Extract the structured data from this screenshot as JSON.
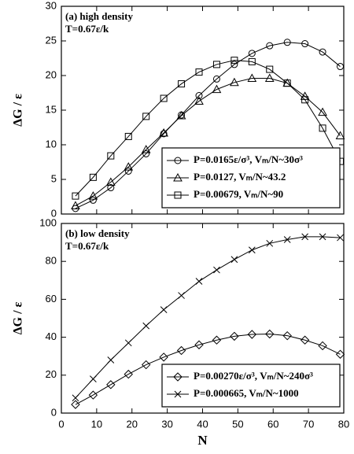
{
  "chart_data": [
    {
      "type": "line",
      "annotations": [
        "(a) high density",
        "T=0.67ε/k"
      ],
      "ylabel": "ΔG / ε",
      "xlim": [
        0,
        80
      ],
      "ylim": [
        0,
        30
      ],
      "xticks": [
        0,
        10,
        20,
        30,
        40,
        50,
        60,
        70,
        80
      ],
      "show_xtick_labels": false,
      "yticks": [
        0,
        5,
        10,
        15,
        20,
        25,
        30
      ],
      "legend": "lower right",
      "color": "#000000",
      "x": [
        4,
        9,
        14,
        19,
        24,
        29,
        34,
        39,
        44,
        49,
        54,
        59,
        64,
        69,
        74,
        79
      ],
      "series": [
        {
          "name": "P=0.0165ε/σ³, Vₘ/N~30σ³",
          "marker": "circle",
          "values": [
            0.8,
            2.0,
            3.8,
            6.2,
            8.7,
            11.6,
            14.3,
            17.1,
            19.5,
            21.6,
            23.2,
            24.3,
            24.8,
            24.6,
            23.4,
            21.3
          ]
        },
        {
          "name": "P=0.0127, Vₘ/N~43.2",
          "marker": "triangle",
          "values": [
            1.2,
            2.6,
            4.6,
            6.8,
            9.3,
            11.7,
            14.2,
            16.3,
            18.0,
            19.0,
            19.6,
            19.6,
            18.9,
            17.0,
            14.7,
            11.3
          ]
        },
        {
          "name": "P=0.00679, Vₘ/N~90",
          "marker": "square",
          "values": [
            2.6,
            5.3,
            8.4,
            11.2,
            14.1,
            16.7,
            18.8,
            20.5,
            21.6,
            22.2,
            22.0,
            20.9,
            18.9,
            16.5,
            12.4,
            7.6
          ]
        }
      ]
    },
    {
      "type": "line",
      "annotations": [
        "(b) low density",
        "T=0.67ε/k"
      ],
      "ylabel": "ΔG / ε",
      "xlabel": "N",
      "xlim": [
        0,
        80
      ],
      "ylim": [
        0,
        100
      ],
      "xticks": [
        0,
        10,
        20,
        30,
        40,
        50,
        60,
        70,
        80
      ],
      "show_xtick_labels": true,
      "yticks": [
        0,
        20,
        40,
        60,
        80,
        100
      ],
      "legend": "lower right",
      "color": "#000000",
      "x": [
        4,
        9,
        14,
        19,
        24,
        29,
        34,
        39,
        44,
        49,
        54,
        59,
        64,
        69,
        74,
        79
      ],
      "series": [
        {
          "name": "P=0.00270ε/σ³, Vₘ/N~240σ³",
          "marker": "diamond",
          "values": [
            4.5,
            9.5,
            15,
            20.5,
            25.5,
            29.5,
            33,
            36,
            38.5,
            40.5,
            41.5,
            41.7,
            40.8,
            38.5,
            35.5,
            31
          ]
        },
        {
          "name": "P=0.000665, Vₘ/N~1000",
          "marker": "x",
          "values": [
            8,
            18,
            28,
            37,
            46,
            54.5,
            62,
            69.5,
            75.5,
            81,
            86,
            89.5,
            91.5,
            93,
            93,
            92.5
          ]
        }
      ]
    }
  ]
}
